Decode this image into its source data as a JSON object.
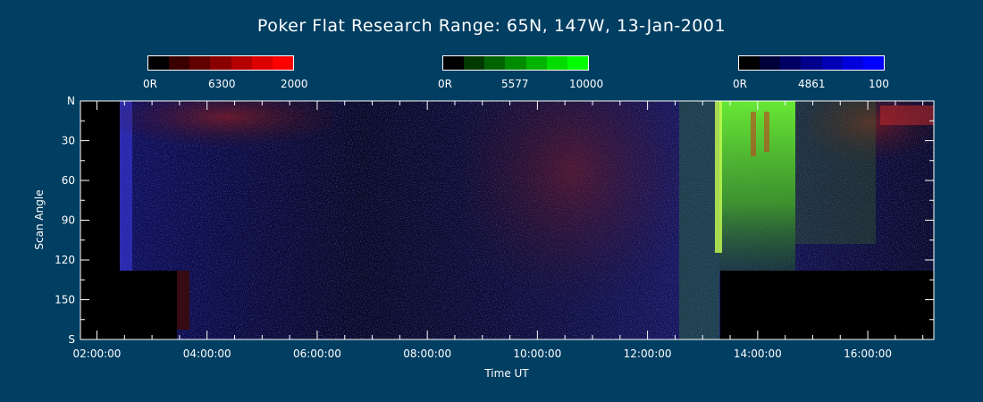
{
  "title": "Poker Flat Research Range: 65N, 147W, 13-Jan-2001",
  "colorbars": [
    {
      "name": "red",
      "labels": [
        "0R",
        "6300",
        "2000"
      ],
      "colors": [
        "#000000",
        "#3a0000",
        "#600000",
        "#8a0000",
        "#b40000",
        "#dc0000",
        "#ff0000"
      ]
    },
    {
      "name": "green",
      "labels": [
        "0R",
        "5577",
        "10000"
      ],
      "colors": [
        "#000000",
        "#003a00",
        "#006400",
        "#008c00",
        "#00b400",
        "#00dc00",
        "#00ff00"
      ]
    },
    {
      "name": "blue",
      "labels": [
        "0R",
        "4861",
        "100"
      ],
      "colors": [
        "#000000",
        "#00003a",
        "#000064",
        "#00008c",
        "#0000b4",
        "#0000dc",
        "#0000ff"
      ]
    }
  ],
  "chart_data": {
    "type": "heatmap",
    "title": "Poker Flat Research Range: 65N, 147W, 13-Jan-2001",
    "xlabel": "Time UT",
    "ylabel": "Scan Angle",
    "x_tick_labels": [
      "02:00:00",
      "04:00:00",
      "06:00:00",
      "08:00:00",
      "10:00:00",
      "12:00:00",
      "14:00:00",
      "16:00:00"
    ],
    "x_tick_hours": [
      2,
      4,
      6,
      8,
      10,
      12,
      14,
      16
    ],
    "xlim_hours": [
      1.7,
      17.2
    ],
    "y_tick_labels": [
      "N",
      "30",
      "60",
      "90",
      "120",
      "150",
      "S"
    ],
    "y_tick_values": [
      0,
      30,
      60,
      90,
      120,
      150,
      180
    ],
    "ylim": [
      0,
      180
    ],
    "channels": [
      "6300 (red)",
      "5577 (green)",
      "4861 (blue)"
    ]
  }
}
